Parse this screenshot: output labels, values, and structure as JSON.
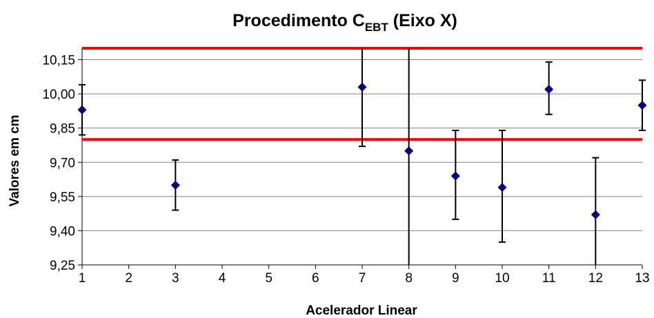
{
  "chart_data": {
    "type": "scatter",
    "title": {
      "main": "Procedimento C",
      "subscript": "EBT",
      "suffix": " (Eixo X)"
    },
    "xlabel": "Acelerador Linear",
    "ylabel": "Valores em cm",
    "xlim": [
      1,
      13
    ],
    "ylim": [
      9.25,
      10.2
    ],
    "x_ticks": [
      "1",
      "2",
      "3",
      "4",
      "5",
      "6",
      "7",
      "8",
      "9",
      "10",
      "11",
      "12",
      "13"
    ],
    "y_ticks": [
      "9,25",
      "9,40",
      "9,55",
      "9,70",
      "9,85",
      "10,00",
      "10,15"
    ],
    "y_tick_values": [
      9.25,
      9.4,
      9.55,
      9.7,
      9.85,
      10.0,
      10.15
    ],
    "grid": true,
    "reference_lines": [
      {
        "y": 10.2,
        "color": "#ff0000"
      },
      {
        "y": 9.8,
        "color": "#ff0000"
      }
    ],
    "series": [
      {
        "marker": "diamond",
        "color": "#000080",
        "points": [
          {
            "x": 1,
            "y": 9.93,
            "err_low": 9.82,
            "err_high": 10.04
          },
          {
            "x": 3,
            "y": 9.6,
            "err_low": 9.49,
            "err_high": 9.71
          },
          {
            "x": 7,
            "y": 10.03,
            "err_low": 9.77,
            "err_high": 10.2
          },
          {
            "x": 8,
            "y": 9.75,
            "err_low": 9.25,
            "err_high": 10.2
          },
          {
            "x": 9,
            "y": 9.64,
            "err_low": 9.45,
            "err_high": 9.84
          },
          {
            "x": 10,
            "y": 9.59,
            "err_low": 9.35,
            "err_high": 9.84
          },
          {
            "x": 11,
            "y": 10.02,
            "err_low": 9.91,
            "err_high": 10.14
          },
          {
            "x": 12,
            "y": 9.47,
            "err_low": 9.25,
            "err_high": 9.72
          },
          {
            "x": 13,
            "y": 9.95,
            "err_low": 9.84,
            "err_high": 10.06
          }
        ]
      }
    ]
  }
}
